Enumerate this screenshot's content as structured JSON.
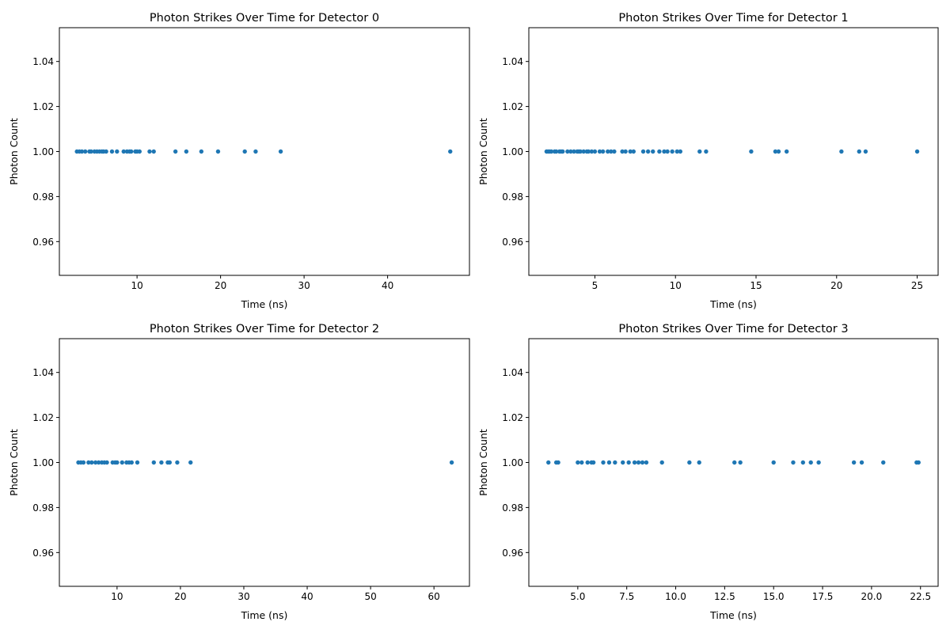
{
  "chart_data": [
    {
      "type": "scatter",
      "title": "Photon Strikes Over Time for Detector 0",
      "xlabel": "Time (ns)",
      "ylabel": "Photon Count",
      "xlim": [
        0.7,
        49.8
      ],
      "ylim": [
        0.945,
        1.055
      ],
      "xticks": [
        10,
        20,
        30,
        40
      ],
      "xtick_labels": [
        "10",
        "20",
        "30",
        "40"
      ],
      "yticks": [
        0.96,
        0.98,
        1.0,
        1.02,
        1.04
      ],
      "ytick_labels": [
        "0.96",
        "0.98",
        "1.00",
        "1.02",
        "1.04"
      ],
      "grid": false,
      "color": "#1f77b4",
      "series": [
        {
          "x": [
            2.8,
            3.1,
            3.4,
            3.8,
            4.3,
            4.5,
            4.9,
            5.2,
            5.5,
            5.8,
            6.0,
            6.3,
            7.0,
            7.6,
            8.4,
            8.8,
            9.1,
            9.3,
            9.8,
            10.0,
            10.3,
            11.5,
            12.0,
            14.6,
            15.9,
            17.7,
            19.7,
            22.9,
            24.2,
            27.2,
            47.5
          ],
          "y": [
            1,
            1,
            1,
            1,
            1,
            1,
            1,
            1,
            1,
            1,
            1,
            1,
            1,
            1,
            1,
            1,
            1,
            1,
            1,
            1,
            1,
            1,
            1,
            1,
            1,
            1,
            1,
            1,
            1,
            1,
            1
          ]
        }
      ]
    },
    {
      "type": "scatter",
      "title": "Photon Strikes Over Time for Detector 1",
      "xlabel": "Time (ns)",
      "ylabel": "Photon Count",
      "xlim": [
        0.9,
        26.3
      ],
      "ylim": [
        0.945,
        1.055
      ],
      "xticks": [
        5,
        10,
        15,
        20,
        25
      ],
      "xtick_labels": [
        "5",
        "10",
        "15",
        "20",
        "25"
      ],
      "yticks": [
        0.96,
        0.98,
        1.0,
        1.02,
        1.04
      ],
      "ytick_labels": [
        "0.96",
        "0.98",
        "1.00",
        "1.02",
        "1.04"
      ],
      "grid": false,
      "color": "#1f77b4",
      "series": [
        {
          "x": [
            2.0,
            2.1,
            2.2,
            2.3,
            2.5,
            2.6,
            2.8,
            2.9,
            3.0,
            3.3,
            3.5,
            3.7,
            3.9,
            4.0,
            4.1,
            4.3,
            4.5,
            4.6,
            4.8,
            5.0,
            5.3,
            5.5,
            5.8,
            6.0,
            6.2,
            6.7,
            6.9,
            7.2,
            7.4,
            8.0,
            8.3,
            8.6,
            9.0,
            9.3,
            9.5,
            9.8,
            10.1,
            10.3,
            11.5,
            11.9,
            14.7,
            16.2,
            16.4,
            16.9,
            20.3,
            21.4,
            21.8,
            25.0
          ],
          "y": [
            1,
            1,
            1,
            1,
            1,
            1,
            1,
            1,
            1,
            1,
            1,
            1,
            1,
            1,
            1,
            1,
            1,
            1,
            1,
            1,
            1,
            1,
            1,
            1,
            1,
            1,
            1,
            1,
            1,
            1,
            1,
            1,
            1,
            1,
            1,
            1,
            1,
            1,
            1,
            1,
            1,
            1,
            1,
            1,
            1,
            1,
            1,
            1
          ]
        }
      ]
    },
    {
      "type": "scatter",
      "title": "Photon Strikes Over Time for Detector 2",
      "xlabel": "Time (ns)",
      "ylabel": "Photon Count",
      "xlim": [
        0.9,
        65.6
      ],
      "ylim": [
        0.945,
        1.055
      ],
      "xticks": [
        10,
        20,
        30,
        40,
        50,
        60
      ],
      "xtick_labels": [
        "10",
        "20",
        "30",
        "40",
        "50",
        "60"
      ],
      "yticks": [
        0.96,
        0.98,
        1.0,
        1.02,
        1.04
      ],
      "ytick_labels": [
        "0.96",
        "0.98",
        "1.00",
        "1.02",
        "1.04"
      ],
      "grid": false,
      "color": "#1f77b4",
      "series": [
        {
          "x": [
            3.9,
            4.3,
            4.7,
            5.5,
            6.0,
            6.6,
            7.1,
            7.6,
            8.0,
            8.4,
            9.3,
            9.7,
            10.0,
            10.8,
            11.5,
            11.9,
            12.3,
            13.2,
            15.8,
            17.0,
            18.0,
            18.3,
            19.5,
            21.6,
            62.8
          ],
          "y": [
            1,
            1,
            1,
            1,
            1,
            1,
            1,
            1,
            1,
            1,
            1,
            1,
            1,
            1,
            1,
            1,
            1,
            1,
            1,
            1,
            1,
            1,
            1,
            1,
            1
          ]
        }
      ]
    },
    {
      "type": "scatter",
      "title": "Photon Strikes Over Time for Detector 3",
      "xlabel": "Time (ns)",
      "ylabel": "Photon Count",
      "xlim": [
        2.5,
        23.4
      ],
      "ylim": [
        0.945,
        1.055
      ],
      "xticks": [
        5.0,
        7.5,
        10.0,
        12.5,
        15.0,
        17.5,
        20.0,
        22.5
      ],
      "xtick_labels": [
        "5.0",
        "7.5",
        "10.0",
        "12.5",
        "15.0",
        "17.5",
        "20.0",
        "22.5"
      ],
      "yticks": [
        0.96,
        0.98,
        1.0,
        1.02,
        1.04
      ],
      "ytick_labels": [
        "0.96",
        "0.98",
        "1.00",
        "1.02",
        "1.04"
      ],
      "grid": false,
      "color": "#1f77b4",
      "series": [
        {
          "x": [
            3.5,
            3.9,
            4.0,
            5.0,
            5.2,
            5.5,
            5.7,
            5.8,
            6.3,
            6.6,
            6.9,
            7.3,
            7.6,
            7.9,
            8.1,
            8.3,
            8.5,
            9.3,
            10.7,
            11.2,
            13.0,
            13.3,
            15.0,
            16.0,
            16.5,
            16.9,
            17.3,
            19.1,
            19.5,
            20.6,
            22.3,
            22.4
          ],
          "y": [
            1,
            1,
            1,
            1,
            1,
            1,
            1,
            1,
            1,
            1,
            1,
            1,
            1,
            1,
            1,
            1,
            1,
            1,
            1,
            1,
            1,
            1,
            1,
            1,
            1,
            1,
            1,
            1,
            1,
            1,
            1,
            1
          ]
        }
      ]
    }
  ]
}
